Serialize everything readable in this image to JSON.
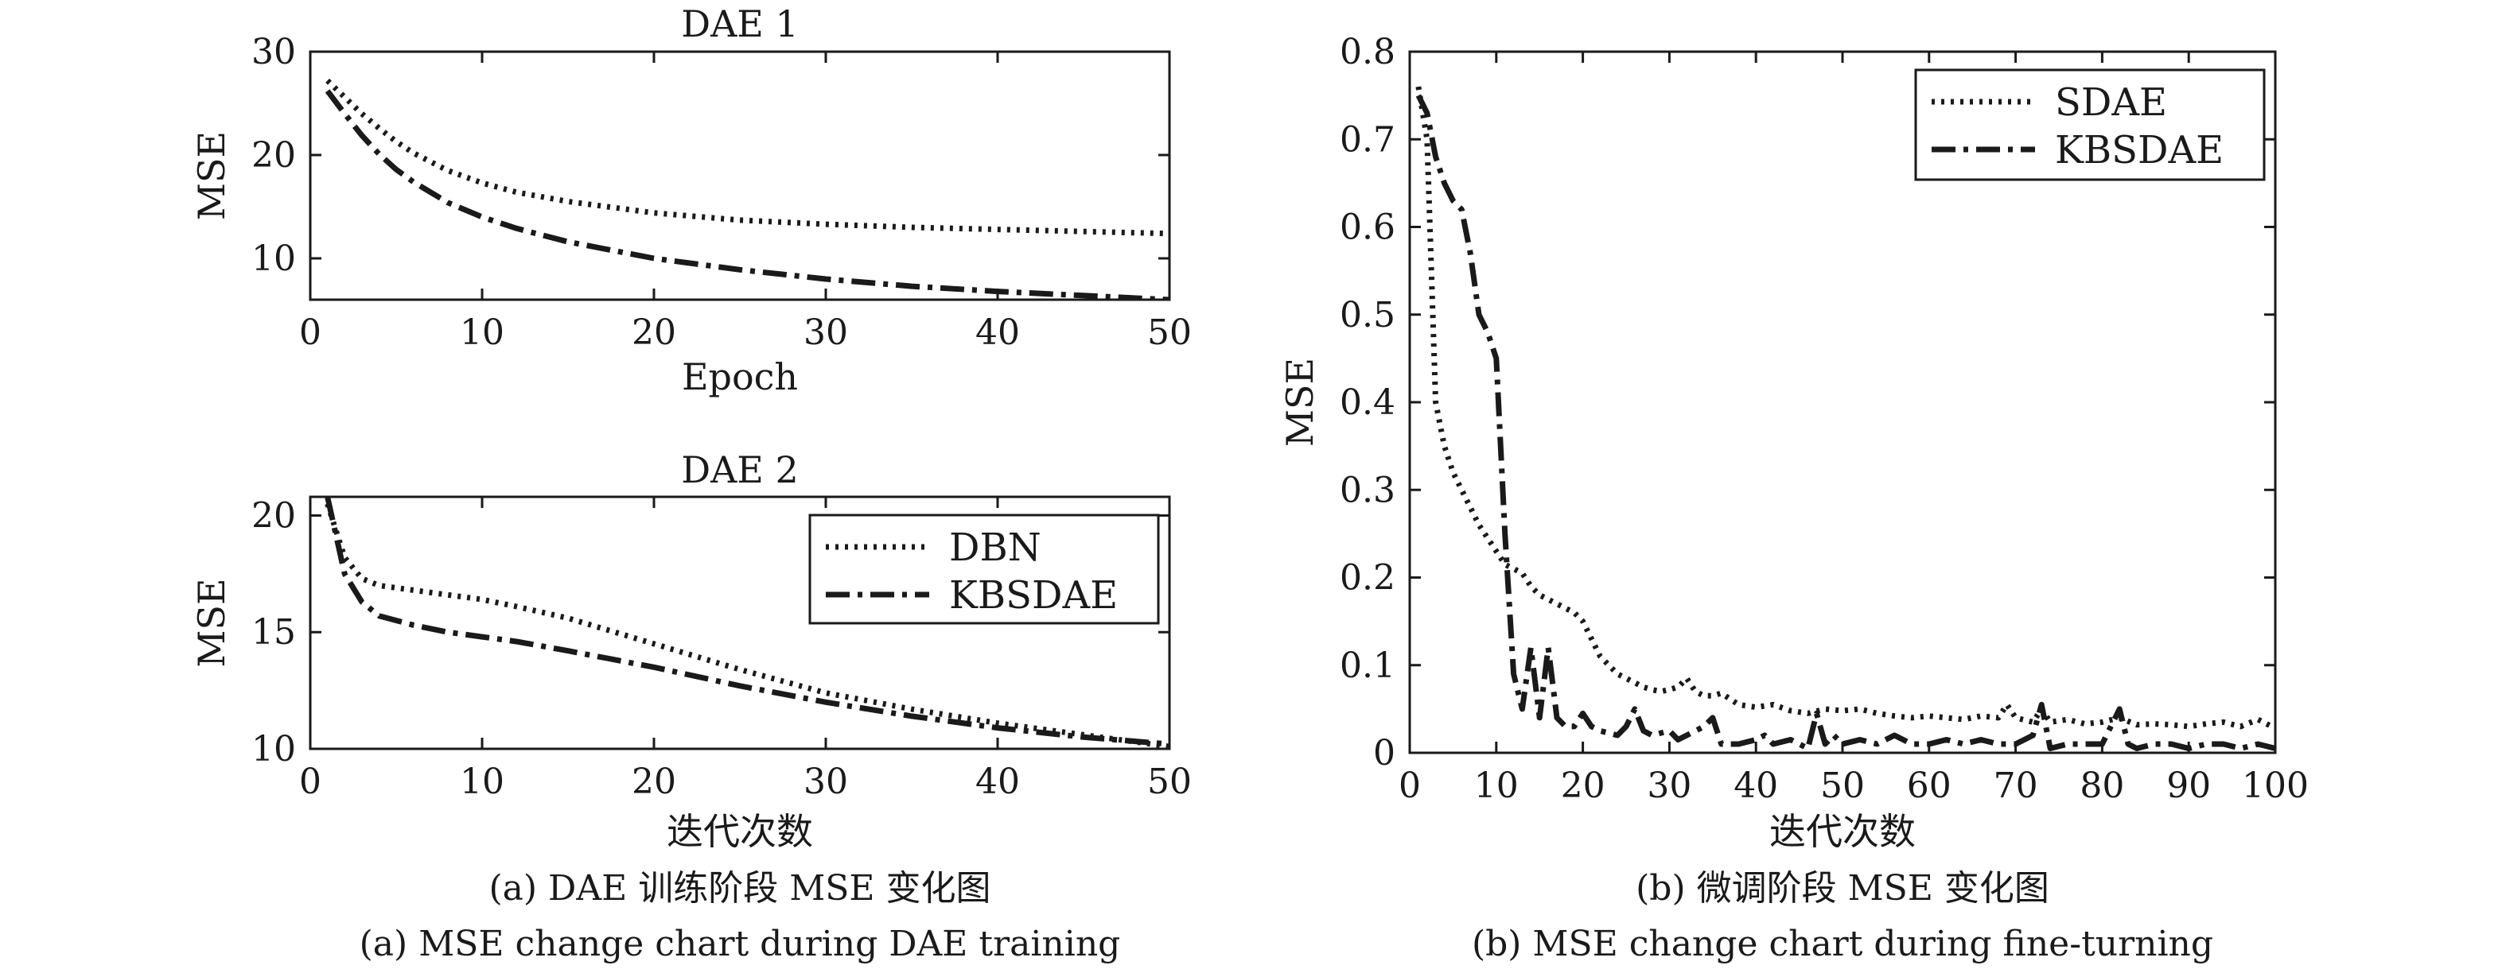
{
  "chart_data": [
    {
      "id": "dae1",
      "type": "line",
      "title": "DAE 1",
      "xlabel": "Epoch",
      "ylabel": "MSE",
      "xlim": [
        0,
        50
      ],
      "ylim": [
        6,
        30
      ],
      "xticks": [
        0,
        10,
        20,
        30,
        40,
        50
      ],
      "yticks": [
        10,
        20,
        30
      ],
      "series": [
        {
          "name": "DBN",
          "style": "dotted",
          "x": [
            1,
            2,
            3,
            4,
            5,
            6,
            8,
            10,
            12,
            15,
            20,
            25,
            30,
            35,
            40,
            45,
            50
          ],
          "y": [
            27.2,
            25.6,
            24.0,
            22.6,
            21.3,
            20.2,
            18.5,
            17.3,
            16.4,
            15.5,
            14.4,
            13.7,
            13.3,
            13.0,
            12.8,
            12.6,
            12.4
          ]
        },
        {
          "name": "KBSDAE",
          "style": "dashdot",
          "x": [
            1,
            2,
            3,
            4,
            5,
            6,
            8,
            10,
            12,
            15,
            20,
            25,
            30,
            35,
            40,
            45,
            50
          ],
          "y": [
            26.2,
            24.0,
            21.9,
            20.1,
            18.6,
            17.4,
            15.4,
            14.0,
            12.9,
            11.6,
            10.0,
            8.9,
            8.0,
            7.3,
            6.8,
            6.4,
            6.0
          ]
        }
      ]
    },
    {
      "id": "dae2",
      "type": "line",
      "title": "DAE 2",
      "xlabel": "迭代次数",
      "ylabel": "MSE",
      "xlim": [
        0,
        50
      ],
      "ylim": [
        10,
        20.8
      ],
      "xticks": [
        0,
        10,
        20,
        30,
        40,
        50
      ],
      "yticks": [
        10,
        15,
        20
      ],
      "legend": [
        "DBN",
        "KBSDAE"
      ],
      "series": [
        {
          "name": "DBN",
          "style": "dotted",
          "x": [
            1,
            2,
            3,
            4,
            6,
            8,
            10,
            12,
            15,
            20,
            25,
            30,
            35,
            40,
            45,
            50
          ],
          "y": [
            20.5,
            18.2,
            17.3,
            17.0,
            16.8,
            16.6,
            16.4,
            16.1,
            15.6,
            14.5,
            13.4,
            12.4,
            11.7,
            11.1,
            10.6,
            10.1
          ]
        },
        {
          "name": "KBSDAE",
          "style": "dashdot",
          "x": [
            1,
            2,
            3,
            4,
            6,
            8,
            10,
            12,
            15,
            20,
            25,
            30,
            35,
            40,
            45,
            50
          ],
          "y": [
            20.8,
            17.5,
            16.3,
            15.7,
            15.3,
            15.0,
            14.8,
            14.6,
            14.2,
            13.5,
            12.7,
            12.0,
            11.4,
            10.9,
            10.5,
            10.2
          ]
        }
      ]
    },
    {
      "id": "finetune",
      "type": "line",
      "title": "",
      "xlabel": "迭代次数",
      "ylabel": "MSE",
      "xlim": [
        0,
        100
      ],
      "ylim": [
        0,
        0.8
      ],
      "xticks": [
        0,
        10,
        20,
        30,
        40,
        50,
        60,
        70,
        80,
        90,
        100
      ],
      "yticks": [
        0,
        0.1,
        0.2,
        0.3,
        0.4,
        0.5,
        0.6,
        0.7,
        0.8
      ],
      "legend": [
        "SDAE",
        "KBSDAE"
      ],
      "series": [
        {
          "name": "SDAE",
          "style": "dotted",
          "x": [
            1,
            2,
            3,
            4,
            5,
            6,
            7,
            8,
            9,
            10,
            11,
            12,
            13,
            14,
            15,
            16,
            17,
            18,
            19,
            20,
            21,
            22,
            23,
            24,
            25,
            26,
            27,
            28,
            29,
            30,
            31,
            32,
            33,
            34,
            35,
            36,
            38,
            40,
            42,
            44,
            46,
            48,
            50,
            52,
            54,
            56,
            58,
            60,
            62,
            64,
            66,
            68,
            69,
            70,
            72,
            73,
            74,
            76,
            78,
            80,
            82,
            84,
            86,
            88,
            90,
            92,
            94,
            96,
            98,
            100
          ],
          "y": [
            0.76,
            0.7,
            0.4,
            0.35,
            0.32,
            0.3,
            0.28,
            0.26,
            0.245,
            0.23,
            0.215,
            0.21,
            0.205,
            0.19,
            0.18,
            0.175,
            0.17,
            0.165,
            0.16,
            0.15,
            0.13,
            0.11,
            0.1,
            0.09,
            0.085,
            0.08,
            0.075,
            0.072,
            0.07,
            0.072,
            0.075,
            0.085,
            0.07,
            0.065,
            0.065,
            0.068,
            0.055,
            0.052,
            0.055,
            0.048,
            0.045,
            0.05,
            0.048,
            0.05,
            0.045,
            0.042,
            0.04,
            0.042,
            0.04,
            0.038,
            0.042,
            0.04,
            0.055,
            0.04,
            0.035,
            0.05,
            0.035,
            0.038,
            0.033,
            0.035,
            0.04,
            0.032,
            0.033,
            0.032,
            0.03,
            0.033,
            0.035,
            0.03,
            0.038,
            0.028
          ]
        },
        {
          "name": "KBSDAE",
          "style": "dashdot",
          "x": [
            1,
            2,
            3,
            4,
            5,
            6,
            7,
            8,
            9,
            10,
            11,
            12,
            13,
            14,
            15,
            16,
            17,
            18,
            19,
            20,
            21,
            22,
            24,
            25,
            26,
            27,
            28,
            30,
            31,
            32,
            34,
            35,
            36,
            37,
            38,
            40,
            41,
            42,
            44,
            46,
            47,
            48,
            49,
            50,
            52,
            54,
            56,
            58,
            60,
            62,
            64,
            66,
            68,
            70,
            72,
            73,
            74,
            76,
            78,
            80,
            82,
            83,
            84,
            86,
            88,
            90,
            92,
            94,
            96,
            98,
            100
          ],
          "y": [
            0.75,
            0.73,
            0.68,
            0.65,
            0.63,
            0.62,
            0.57,
            0.5,
            0.48,
            0.45,
            0.25,
            0.09,
            0.05,
            0.12,
            0.04,
            0.12,
            0.04,
            0.03,
            0.03,
            0.045,
            0.03,
            0.025,
            0.02,
            0.03,
            0.05,
            0.025,
            0.02,
            0.025,
            0.015,
            0.02,
            0.03,
            0.04,
            0.01,
            0.01,
            0.01,
            0.015,
            0.02,
            0.01,
            0.015,
            0.005,
            0.045,
            0.01,
            0.02,
            0.01,
            0.015,
            0.01,
            0.02,
            0.01,
            0.01,
            0.015,
            0.01,
            0.015,
            0.01,
            0.01,
            0.02,
            0.055,
            0.005,
            0.01,
            0.01,
            0.01,
            0.05,
            0.01,
            0.005,
            0.01,
            0.01,
            0.005,
            0.01,
            0.01,
            0.005,
            0.01,
            0.005
          ]
        }
      ]
    }
  ],
  "captions": {
    "left_cn": "(a) DAE 训练阶段 MSE 变化图",
    "left_en": "(a) MSE change chart during DAE training",
    "right_cn": "(b) 微调阶段 MSE 变化图",
    "right_en": "(b) MSE change chart during fine-turning"
  }
}
